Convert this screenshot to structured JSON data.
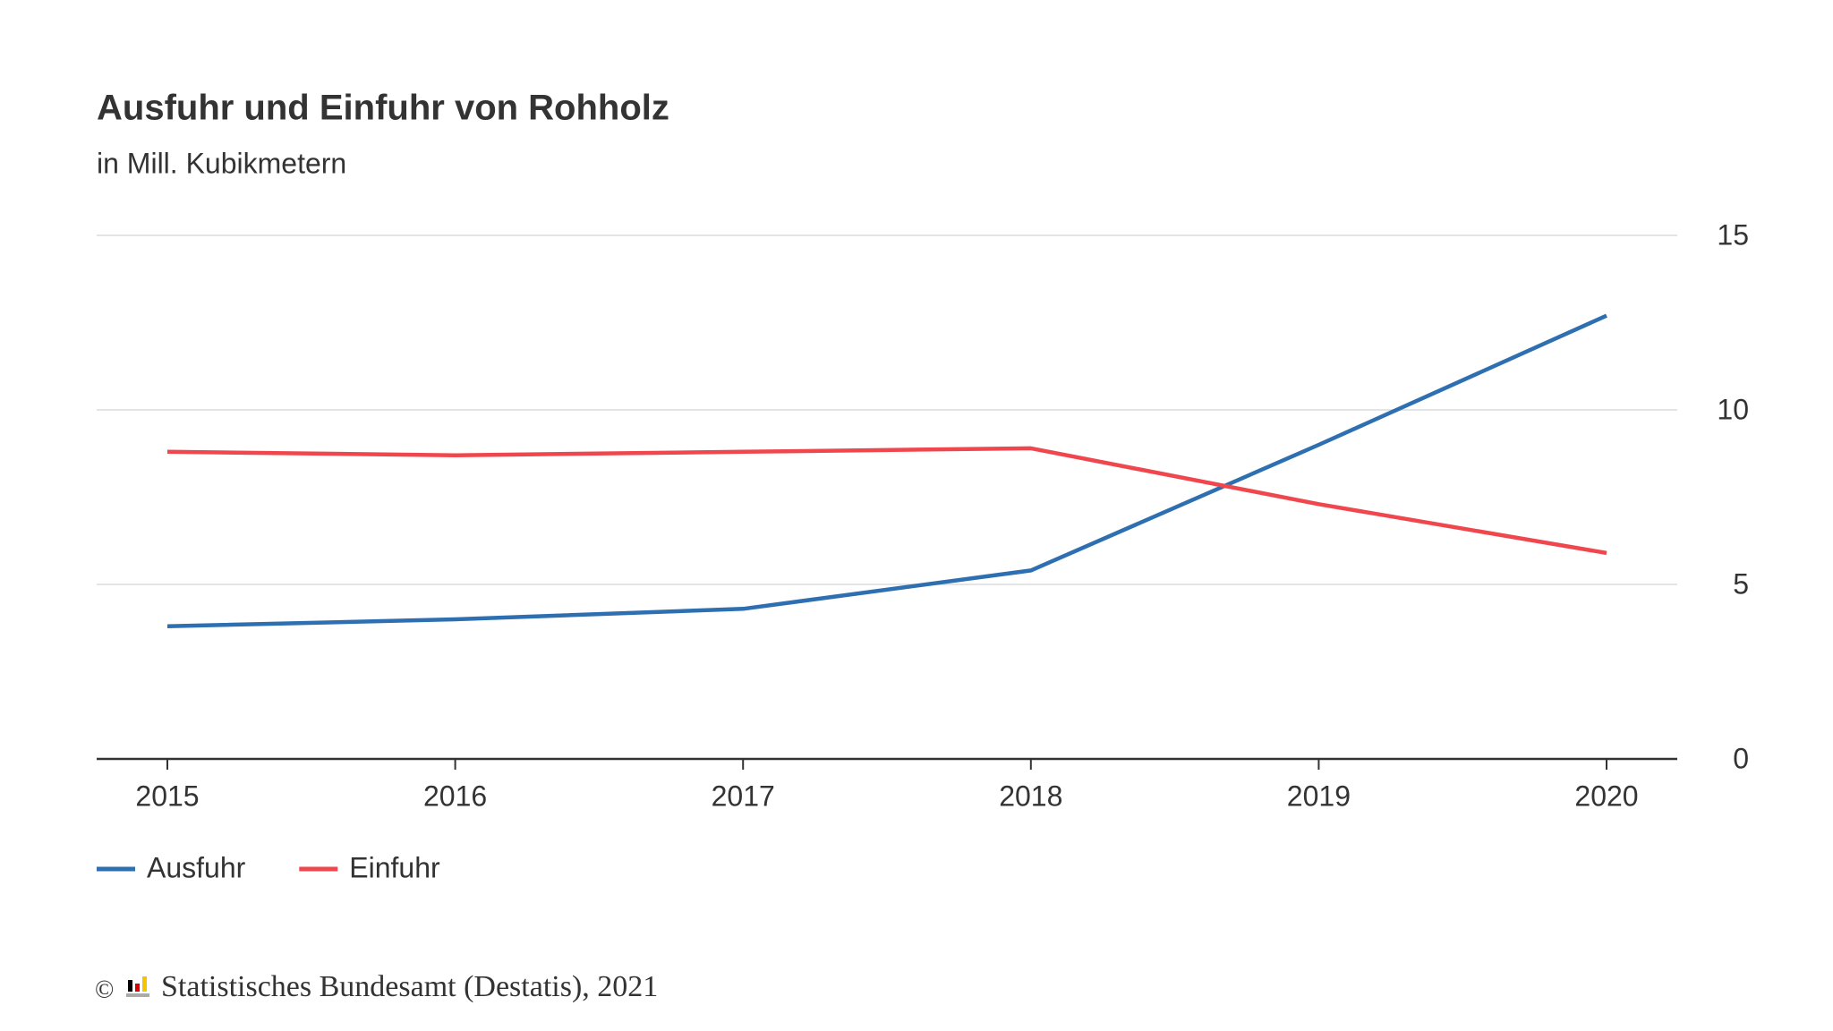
{
  "chart_data": {
    "type": "line",
    "title": "Ausfuhr und Einfuhr von Rohholz",
    "subtitle": "in Mill. Kubikmetern",
    "categories": [
      "2015",
      "2016",
      "2017",
      "2018",
      "2019",
      "2020"
    ],
    "series": [
      {
        "name": "Ausfuhr",
        "color": "#2d6fb0",
        "values": [
          3.8,
          4.0,
          4.3,
          5.4,
          9.0,
          12.7
        ]
      },
      {
        "name": "Einfuhr",
        "color": "#f0464d",
        "values": [
          8.8,
          8.7,
          8.8,
          8.9,
          7.3,
          5.9
        ]
      }
    ],
    "ylim": [
      0,
      15
    ],
    "yticks": [
      0,
      5,
      10,
      15
    ],
    "grid": true,
    "copyright": "©",
    "source": "Statistisches Bundesamt (Destatis), 2021"
  }
}
